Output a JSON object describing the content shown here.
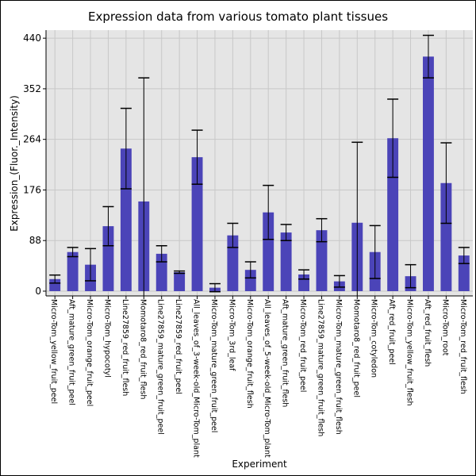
{
  "chart_data": {
    "type": "bar",
    "title": "Expression data from various tomato plant tissues",
    "xlabel": "Experiment",
    "ylabel": "Expression_(Fluor._Intensity)",
    "ylim": [
      -8.3,
      454
    ],
    "yticks": [
      0,
      88,
      176,
      264,
      352,
      440
    ],
    "grid": true,
    "bar_color": "#4b44b8",
    "background": "#e5e5e5",
    "categories": [
      "Micro-Tom_yellow_fruit_peel",
      "Aft_mature_green_fruit_peel",
      "Micro-Tom_orange_fruit_peel",
      "Micro-Tom_hypocotyl",
      "Line27859_red_fruit_flesh",
      "Momotaro8_red_fruit_flesh",
      "Line27859_mature_green_fruit_peel",
      "Line27859_red_fruit_peel",
      "All_leaves_of_3-week-old_Micro-Tom_plant",
      "Micro-Tom_mature_green_fruit_peel",
      "Micro-Tom_3rd_leaf",
      "Micro-Tom_orange_fruit_flesh",
      "All_leaves_of_5-week-old_Micro-Tom_plant",
      "Aft_mature_green_fruit_flesh",
      "Micro-Tom_red_fruit_peel",
      "Line27859_mature_green_fruit_flesh",
      "Micro-Tom_mature_green_fruit_flesh",
      "Momotaro8_red_fruit_peel",
      "Micro-Tom_cotyledon",
      "Aft_red_fruit_peel",
      "Micro-Tom_yellow_fruit_flesh",
      "Aft_red_fruit_flesh",
      "Micro-Tom_root",
      "Micro-Tom_red_fruit_flesh"
    ],
    "values": [
      21,
      68,
      46,
      113,
      248,
      156,
      65,
      33,
      233,
      6,
      97,
      37,
      137,
      102,
      29,
      106,
      17,
      119,
      68,
      266,
      26,
      408,
      188,
      62
    ],
    "errors": [
      7,
      8,
      28,
      34,
      70,
      215,
      14,
      2,
      47,
      7,
      21,
      14,
      47,
      14,
      8,
      20,
      10,
      140,
      46,
      68,
      20,
      37,
      70,
      14
    ]
  }
}
